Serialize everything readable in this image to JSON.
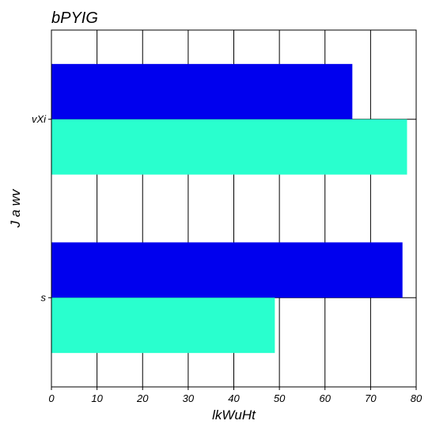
{
  "chart_data": {
    "type": "bar",
    "orientation": "horizontal",
    "title": "bPYIG",
    "xlabel": "lkWuHt",
    "ylabel": "J a wv",
    "categories": [
      "vXi",
      "s"
    ],
    "series": [
      {
        "values": [
          66,
          77
        ],
        "color": "#0000ee"
      },
      {
        "values": [
          78,
          49
        ],
        "color": "#29ffce"
      }
    ],
    "xlim": [
      0,
      80
    ],
    "xticks": [
      0,
      10,
      20,
      30,
      40,
      50,
      60,
      70,
      80
    ],
    "grid": true
  }
}
